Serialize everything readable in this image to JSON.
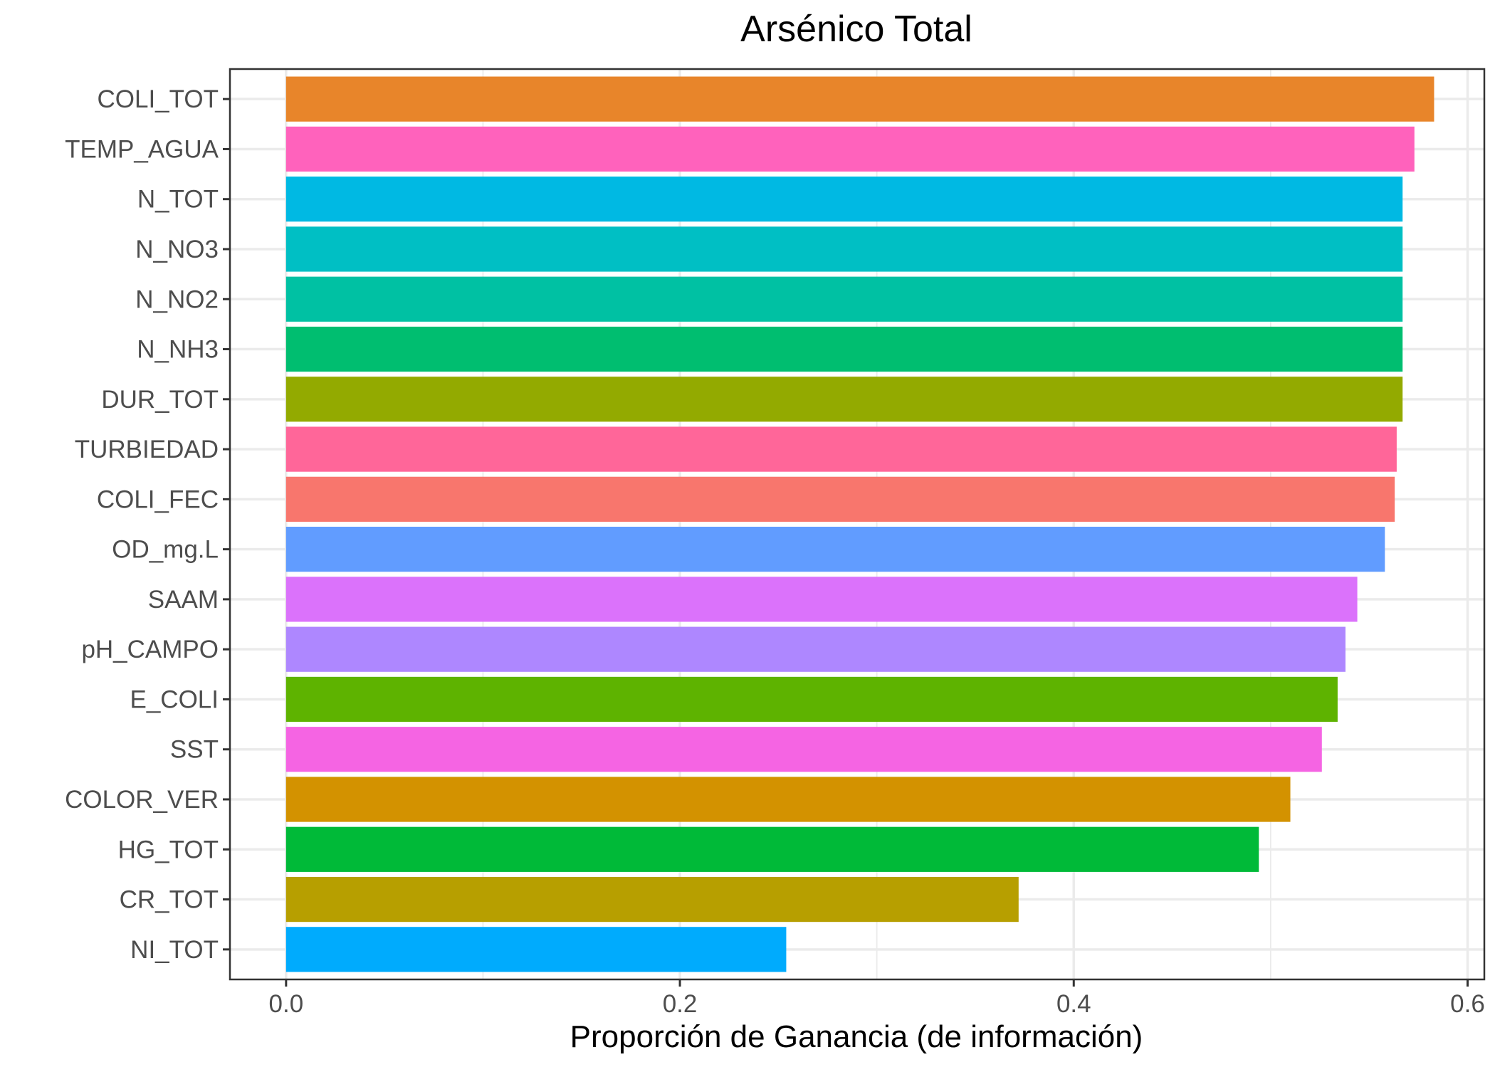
{
  "chart_data": {
    "type": "bar",
    "orientation": "horizontal",
    "title": "Arsénico Total",
    "xlabel": "Proporción de Ganancia (de información)",
    "ylabel": "",
    "xlim": [
      -0.0285,
      0.6085
    ],
    "xticks": [
      0.0,
      0.2,
      0.4,
      0.6
    ],
    "xtick_labels": [
      "0.0",
      "0.2",
      "0.4",
      "0.6"
    ],
    "grid": true,
    "legend": "none",
    "categories": [
      "COLI_TOT",
      "TEMP_AGUA",
      "N_TOT",
      "N_NO3",
      "N_NO2",
      "N_NH3",
      "DUR_TOT",
      "TURBIEDAD",
      "COLI_FEC",
      "OD_mg.L",
      "SAAM",
      "pH_CAMPO",
      "E_COLI",
      "SST",
      "COLOR_VER",
      "HG_TOT",
      "CR_TOT",
      "NI_TOT"
    ],
    "values": [
      0.583,
      0.573,
      0.567,
      0.567,
      0.567,
      0.567,
      0.567,
      0.564,
      0.563,
      0.558,
      0.544,
      0.538,
      0.534,
      0.526,
      0.51,
      0.494,
      0.372,
      0.254
    ],
    "colors": [
      "#E8852A",
      "#FF62BC",
      "#00B9E3",
      "#00BFC4",
      "#00C1A3",
      "#00BE70",
      "#93AA00",
      "#FF6699",
      "#F8766D",
      "#619CFF",
      "#DB72FB",
      "#AE87FF",
      "#5EB300",
      "#F564E3",
      "#D39200",
      "#00BA38",
      "#B79F00",
      "#00ABFD"
    ]
  }
}
